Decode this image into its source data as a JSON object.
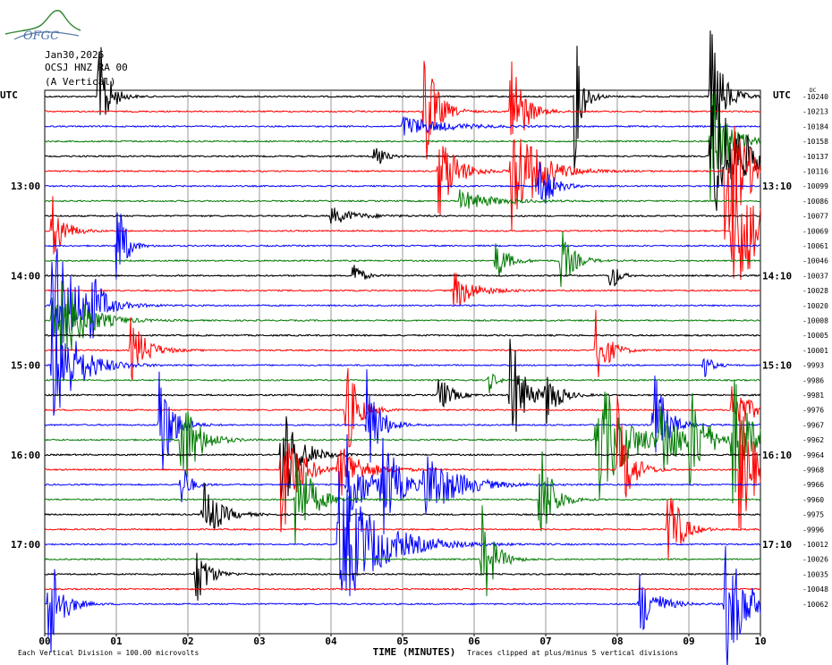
{
  "logo": {
    "text": "OFGC",
    "icon": "ofgc-logo-icon"
  },
  "header": {
    "date": "Jan30,2026",
    "station": "OCSJ HNZ RA 00",
    "component": "(A Vertical)"
  },
  "utc_left": "UTC",
  "utc_right": "UTC",
  "trace_colors": [
    "#000000",
    "#ff0000",
    "#0000ff",
    "#007a00"
  ],
  "chart_data": {
    "type": "line",
    "subtype": "helicorder",
    "xlabel": "TIME (MINUTES)",
    "xlim": [
      0,
      10
    ],
    "x_ticks": [
      "00",
      "01",
      "02",
      "03",
      "04",
      "05",
      "06",
      "07",
      "08",
      "09",
      "10"
    ],
    "grid": true,
    "left_time_labels": [
      {
        "row": 6,
        "label": "13:00"
      },
      {
        "row": 12,
        "label": "14:00"
      },
      {
        "row": 18,
        "label": "15:00"
      },
      {
        "row": 24,
        "label": "16:00"
      },
      {
        "row": 30,
        "label": "17:00"
      }
    ],
    "right_time_labels": [
      {
        "row": 6,
        "label": "13:10"
      },
      {
        "row": 12,
        "label": "14:10"
      },
      {
        "row": 18,
        "label": "15:10"
      },
      {
        "row": 24,
        "label": "16:10"
      },
      {
        "row": 30,
        "label": "17:10"
      }
    ],
    "right_values": [
      "-10240",
      "-10213",
      "-10184",
      "-10158",
      "-10137",
      "-10116",
      "-10099",
      "-10086",
      "-10077",
      "-10069",
      "-10061",
      "-10046",
      "-10037",
      "-10028",
      "-10020",
      "-10008",
      "-10005",
      "-10001",
      "-9993",
      "-9986",
      "-9981",
      "-9976",
      "-9967",
      "-9962",
      "-9964",
      "-9968",
      "-9966",
      "-9960",
      "-9975",
      "-9996",
      "-10012",
      "-10026",
      "-10035",
      "-10048",
      "-10062"
    ],
    "right_top_unit": "DC",
    "footer_left": "Each Vertical Division =  100.00 microvolts",
    "footer_right": "Traces clipped at plus/minus 5 vertical divisions",
    "events": [
      {
        "row": 0,
        "minute": 0.75,
        "amp": 0.9,
        "dur": 0.12
      },
      {
        "row": 0,
        "minute": 7.4,
        "amp": 1.0,
        "dur": 0.1
      },
      {
        "row": 0,
        "minute": 9.3,
        "amp": 1.0,
        "dur": 0.15
      },
      {
        "row": 1,
        "minute": 5.3,
        "amp": 1.0,
        "dur": 0.15
      },
      {
        "row": 1,
        "minute": 6.5,
        "amp": 1.0,
        "dur": 0.15
      },
      {
        "row": 2,
        "minute": 5.0,
        "amp": 0.15,
        "dur": 0.5
      },
      {
        "row": 3,
        "minute": 9.3,
        "amp": 1.0,
        "dur": 0.2
      },
      {
        "row": 4,
        "minute": 4.6,
        "amp": 0.25,
        "dur": 0.1
      },
      {
        "row": 4,
        "minute": 9.3,
        "amp": 1.0,
        "dur": 0.4
      },
      {
        "row": 5,
        "minute": 5.5,
        "amp": 0.7,
        "dur": 0.2
      },
      {
        "row": 5,
        "minute": 6.5,
        "amp": 1.0,
        "dur": 0.3
      },
      {
        "row": 5,
        "minute": 9.5,
        "amp": 1.0,
        "dur": 0.3
      },
      {
        "row": 6,
        "minute": 6.9,
        "amp": 0.5,
        "dur": 0.15
      },
      {
        "row": 7,
        "minute": 5.8,
        "amp": 0.15,
        "dur": 0.4
      },
      {
        "row": 8,
        "minute": 4.0,
        "amp": 0.12,
        "dur": 0.3
      },
      {
        "row": 9,
        "minute": 0.1,
        "amp": 0.5,
        "dur": 0.15
      },
      {
        "row": 9,
        "minute": 9.6,
        "amp": 1.0,
        "dur": 0.4
      },
      {
        "row": 10,
        "minute": 1.0,
        "amp": 0.9,
        "dur": 0.1
      },
      {
        "row": 11,
        "minute": 6.3,
        "amp": 0.3,
        "dur": 0.15
      },
      {
        "row": 11,
        "minute": 7.2,
        "amp": 0.5,
        "dur": 0.15
      },
      {
        "row": 12,
        "minute": 4.3,
        "amp": 0.25,
        "dur": 0.1
      },
      {
        "row": 12,
        "minute": 7.9,
        "amp": 0.35,
        "dur": 0.08
      },
      {
        "row": 13,
        "minute": 5.7,
        "amp": 0.3,
        "dur": 0.25
      },
      {
        "row": 14,
        "minute": 0.1,
        "amp": 1.0,
        "dur": 0.3
      },
      {
        "row": 14,
        "minute": 0.6,
        "amp": 0.6,
        "dur": 0.12
      },
      {
        "row": 15,
        "minute": 0.1,
        "amp": 1.0,
        "dur": 0.3
      },
      {
        "row": 17,
        "minute": 1.2,
        "amp": 0.45,
        "dur": 0.2
      },
      {
        "row": 17,
        "minute": 7.7,
        "amp": 0.55,
        "dur": 0.15
      },
      {
        "row": 18,
        "minute": 0.1,
        "amp": 1.0,
        "dur": 0.3
      },
      {
        "row": 18,
        "minute": 9.2,
        "amp": 0.2,
        "dur": 0.1
      },
      {
        "row": 19,
        "minute": 6.2,
        "amp": 0.2,
        "dur": 0.08
      },
      {
        "row": 20,
        "minute": 5.5,
        "amp": 0.3,
        "dur": 0.15
      },
      {
        "row": 20,
        "minute": 6.5,
        "amp": 1.0,
        "dur": 0.15
      },
      {
        "row": 20,
        "minute": 7.0,
        "amp": 0.4,
        "dur": 0.15
      },
      {
        "row": 21,
        "minute": 4.2,
        "amp": 0.8,
        "dur": 0.15
      },
      {
        "row": 21,
        "minute": 9.6,
        "amp": 0.45,
        "dur": 0.2
      },
      {
        "row": 22,
        "minute": 1.6,
        "amp": 1.0,
        "dur": 0.15
      },
      {
        "row": 22,
        "minute": 4.5,
        "amp": 0.8,
        "dur": 0.15
      },
      {
        "row": 22,
        "minute": 8.5,
        "amp": 0.9,
        "dur": 0.15
      },
      {
        "row": 23,
        "minute": 1.9,
        "amp": 0.8,
        "dur": 0.2
      },
      {
        "row": 23,
        "minute": 7.7,
        "amp": 1.0,
        "dur": 0.35
      },
      {
        "row": 23,
        "minute": 8.6,
        "amp": 0.6,
        "dur": 0.2
      },
      {
        "row": 23,
        "minute": 9.0,
        "amp": 0.7,
        "dur": 0.2
      },
      {
        "row": 23,
        "minute": 9.6,
        "amp": 1.0,
        "dur": 0.2
      },
      {
        "row": 24,
        "minute": 3.3,
        "amp": 1.0,
        "dur": 0.2
      },
      {
        "row": 25,
        "minute": 3.3,
        "amp": 1.0,
        "dur": 0.2
      },
      {
        "row": 25,
        "minute": 4.1,
        "amp": 0.4,
        "dur": 0.3
      },
      {
        "row": 25,
        "minute": 8.0,
        "amp": 1.0,
        "dur": 0.15
      },
      {
        "row": 25,
        "minute": 9.7,
        "amp": 1.0,
        "dur": 0.2
      },
      {
        "row": 26,
        "minute": 1.9,
        "amp": 0.4,
        "dur": 0.1
      },
      {
        "row": 26,
        "minute": 4.2,
        "amp": 0.8,
        "dur": 0.2
      },
      {
        "row": 26,
        "minute": 4.7,
        "amp": 0.8,
        "dur": 0.2
      },
      {
        "row": 26,
        "minute": 5.3,
        "amp": 0.5,
        "dur": 0.4
      },
      {
        "row": 27,
        "minute": 3.5,
        "amp": 0.8,
        "dur": 0.2
      },
      {
        "row": 27,
        "minute": 6.9,
        "amp": 1.0,
        "dur": 0.15
      },
      {
        "row": 28,
        "minute": 2.2,
        "amp": 0.5,
        "dur": 0.2
      },
      {
        "row": 29,
        "minute": 8.7,
        "amp": 0.8,
        "dur": 0.15
      },
      {
        "row": 30,
        "minute": 4.1,
        "amp": 1.0,
        "dur": 0.5
      },
      {
        "row": 31,
        "minute": 6.1,
        "amp": 0.8,
        "dur": 0.15
      },
      {
        "row": 32,
        "minute": 2.1,
        "amp": 0.5,
        "dur": 0.15
      },
      {
        "row": 34,
        "minute": 8.3,
        "amp": 0.5,
        "dur": 0.2
      },
      {
        "row": 34,
        "minute": 0.05,
        "amp": 1.0,
        "dur": 0.15
      },
      {
        "row": 34,
        "minute": 9.5,
        "amp": 1.0,
        "dur": 0.25
      }
    ]
  }
}
